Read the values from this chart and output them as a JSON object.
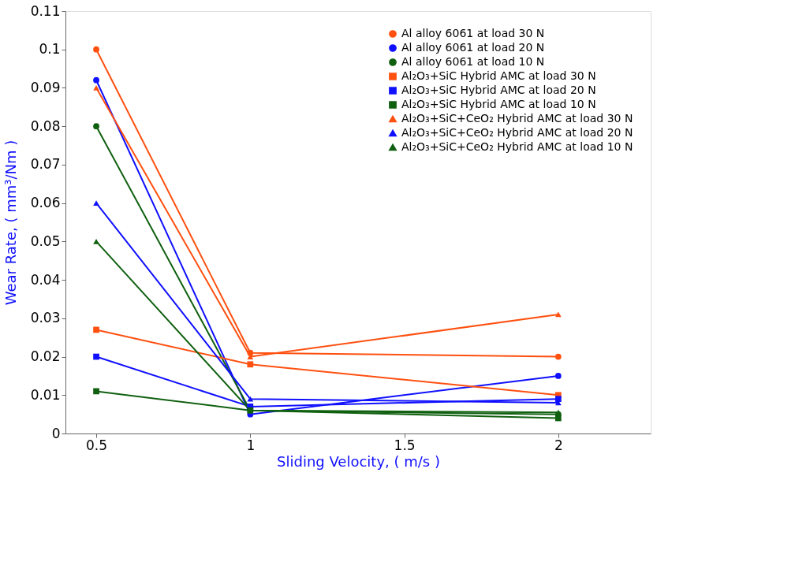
{
  "chart_data": {
    "type": "line",
    "xlabel": "Sliding Velocity, ( m/s )",
    "ylabel": "Wear Rate, ( mm³/Nm )",
    "x": [
      0.5,
      1,
      2
    ],
    "xlim": [
      0.4,
      2.3
    ],
    "xticks": [
      0.5,
      1,
      1.5,
      2
    ],
    "ylim": [
      0,
      0.11
    ],
    "yticks": [
      0,
      0.01,
      0.02,
      0.03,
      0.04,
      0.05,
      0.06,
      0.07,
      0.08,
      0.09,
      0.1,
      0.11
    ],
    "grid": false,
    "legend": "top right",
    "line_style": "solid",
    "series": [
      {
        "name": "Al alloy 6061 at load 30 N",
        "color": "#ff5010",
        "marker": "circle",
        "values": [
          0.1,
          0.021,
          0.02
        ]
      },
      {
        "name": "Al alloy 6061 at load 20 N",
        "color": "#1010ff",
        "marker": "circle",
        "values": [
          0.092,
          0.005,
          0.015
        ]
      },
      {
        "name": "Al alloy 6061 at load 10 N",
        "color": "#106010",
        "marker": "circle",
        "values": [
          0.08,
          0.006,
          0.005
        ]
      },
      {
        "name": "Al₂O₃+SiC Hybrid AMC at load 30 N",
        "color": "#ff5010",
        "marker": "square",
        "values": [
          0.027,
          0.018,
          0.01
        ]
      },
      {
        "name": "Al₂O₃+SiC Hybrid AMC at load 20 N",
        "color": "#1010ff",
        "marker": "square",
        "values": [
          0.02,
          0.007,
          0.009
        ]
      },
      {
        "name": "Al₂O₃+SiC Hybrid AMC at load 10 N",
        "color": "#106010",
        "marker": "square",
        "values": [
          0.011,
          0.006,
          0.004
        ]
      },
      {
        "name": "Al₂O₃+SiC+CeO₂ Hybrid AMC at load 30 N",
        "color": "#ff5010",
        "marker": "triangle",
        "values": [
          0.09,
          0.02,
          0.031
        ]
      },
      {
        "name": "Al₂O₃+SiC+CeO₂ Hybrid AMC at load 20 N",
        "color": "#1010ff",
        "marker": "triangle",
        "values": [
          0.06,
          0.009,
          0.008
        ]
      },
      {
        "name": "Al₂O₃+SiC+CeO₂ Hybrid AMC at load 10 N",
        "color": "#106010",
        "marker": "triangle",
        "values": [
          0.05,
          0.006,
          0.0055
        ]
      }
    ]
  }
}
